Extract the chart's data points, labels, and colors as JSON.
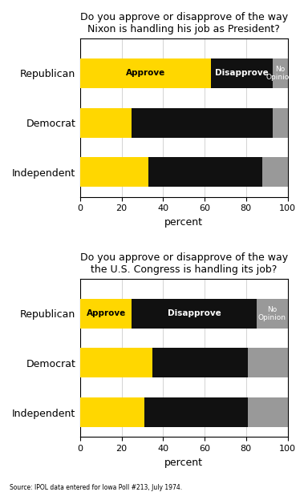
{
  "nixon": {
    "categories": [
      "Independent",
      "Democrat",
      "Republican"
    ],
    "approve": [
      33,
      25,
      63
    ],
    "disapprove": [
      55,
      68,
      30
    ],
    "no_opinion": [
      12,
      7,
      7
    ],
    "title": "Do you approve or disapprove of the way\nNixon is handling his job as President?",
    "label_row": 2
  },
  "congress": {
    "categories": [
      "Independent",
      "Democrat",
      "Republican"
    ],
    "approve": [
      31,
      35,
      25
    ],
    "disapprove": [
      50,
      46,
      60
    ],
    "no_opinion": [
      19,
      19,
      15
    ],
    "title": "Do you approve or disapprove of the way\nthe U.S. Congress is handling its job?",
    "label_row": 2
  },
  "colors": {
    "approve": "#FFD700",
    "disapprove": "#111111",
    "no_opinion": "#999999"
  },
  "label_approve": "Approve",
  "label_disapprove": "Disapprove",
  "label_no_opinion": "No\nOpinion",
  "xlabel": "percent",
  "source": "Source: IPOL data entered for Iowa Poll #213, July 1974.",
  "xlim": [
    0,
    100
  ],
  "xticks": [
    0,
    20,
    40,
    60,
    80,
    100
  ],
  "bar_height": 0.6,
  "background_color": "#ffffff"
}
